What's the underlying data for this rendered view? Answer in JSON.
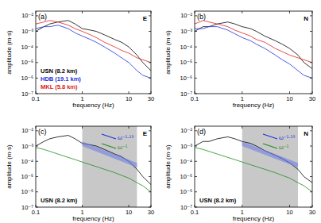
{
  "chart_data": [
    {
      "type": "line",
      "title": "(a)",
      "annotations": [
        {
          "text": "E"
        }
      ],
      "xlabel": "frequency (Hz)",
      "ylabel": "amplitude (m·s)",
      "log": true,
      "legend": "lower left",
      "xlim": [
        0.1,
        30
      ],
      "ylim": [
        1e-07,
        0.02
      ],
      "xticks": [
        0.1,
        1,
        10,
        30
      ],
      "yticks": [
        {
          "value": 1e-07,
          "label": "10⁻⁷"
        },
        {
          "value": 1e-06,
          "label": "10⁻⁶"
        },
        {
          "value": 1e-05,
          "label": "10⁻⁵"
        },
        {
          "value": 0.0001,
          "label": "10⁻⁴"
        },
        {
          "value": 0.001,
          "label": "10⁻³"
        },
        {
          "value": 0.01,
          "label": "10⁻²"
        }
      ],
      "x": [
        0.1,
        0.15,
        0.2,
        0.3,
        0.5,
        0.7,
        1,
        1.5,
        2,
        3,
        5,
        7,
        10,
        15,
        20,
        30
      ],
      "series": [
        {
          "name": "USN (8.2 km)",
          "color": "#000000",
          "values": [
            0.001,
            0.002,
            0.003,
            0.004,
            0.005,
            0.003,
            0.0015,
            0.0012,
            0.001,
            0.0006,
            0.0003,
            0.0002,
            0.0001,
            3e-05,
            1e-05,
            3e-06
          ]
        },
        {
          "name": "HDB (19.1 km)",
          "color": "#1f2fe0",
          "values": [
            0.0015,
            0.002,
            0.002,
            0.0025,
            0.0015,
            0.0008,
            0.0005,
            0.0003,
            0.0002,
            0.0001,
            4e-05,
            2e-05,
            1e-05,
            3e-06,
            1.5e-06,
            1e-06
          ]
        },
        {
          "name": "MKL (5.8 km)",
          "color": "#e0201b",
          "values": [
            0.003,
            0.004,
            0.005,
            0.004,
            0.0025,
            0.0015,
            0.001,
            0.0006,
            0.0004,
            0.0002,
            0.0001,
            6e-05,
            4e-05,
            2e-05,
            1.5e-05,
            1e-05
          ]
        }
      ]
    },
    {
      "type": "line",
      "title": "(b)",
      "annotations": [
        {
          "text": "N"
        }
      ],
      "xlabel": "frequency (Hz)",
      "ylabel": "amplitude (m·s)",
      "log": true,
      "xlim": [
        0.1,
        30
      ],
      "ylim": [
        1e-07,
        0.02
      ],
      "xticks": [
        0.1,
        1,
        10,
        30
      ],
      "yticks": [
        {
          "value": 1e-07,
          "label": "10⁻⁷"
        },
        {
          "value": 1e-06,
          "label": "10⁻⁶"
        },
        {
          "value": 1e-05,
          "label": "10⁻⁵"
        },
        {
          "value": 0.0001,
          "label": "10⁻⁴"
        },
        {
          "value": 0.001,
          "label": "10⁻³"
        },
        {
          "value": 0.01,
          "label": "10⁻²"
        }
      ],
      "x": [
        0.1,
        0.15,
        0.2,
        0.3,
        0.5,
        0.7,
        1,
        1.5,
        2,
        3,
        5,
        7,
        10,
        15,
        20,
        30
      ],
      "series": [
        {
          "color": "#000000",
          "values": [
            0.001,
            0.002,
            0.002,
            0.003,
            0.004,
            0.003,
            0.002,
            0.0015,
            0.001,
            0.0005,
            0.00025,
            0.00015,
            8e-05,
            3e-05,
            1e-05,
            4e-06
          ]
        },
        {
          "color": "#1f2fe0",
          "values": [
            0.0015,
            0.0015,
            0.002,
            0.002,
            0.0012,
            0.0007,
            0.0004,
            0.00025,
            0.00015,
            8e-05,
            3e-05,
            1.5e-05,
            8e-06,
            3e-06,
            1.5e-06,
            1e-06
          ]
        },
        {
          "color": "#e0201b",
          "values": [
            0.003,
            0.005,
            0.004,
            0.003,
            0.002,
            0.0012,
            0.0008,
            0.0005,
            0.0003,
            0.0002,
            8e-05,
            5e-05,
            3e-05,
            2e-05,
            1.5e-05,
            1e-05
          ]
        }
      ]
    },
    {
      "type": "line",
      "title": "(c)",
      "annotations": [
        {
          "text": "E"
        }
      ],
      "slope_labels": [
        {
          "text": "ω⁻¹·¹⁹",
          "color": "#1f2fe0"
        },
        {
          "text": "ω⁻¹",
          "color": "#1e8c1e"
        }
      ],
      "xlabel": "frequency (Hz)",
      "ylabel": "amplitude (m·s)",
      "log": true,
      "legend": "lower left",
      "highlight_x": [
        1,
        15
      ],
      "xlim": [
        0.1,
        30
      ],
      "ylim": [
        1e-07,
        0.02
      ],
      "xticks": [
        0.1,
        1,
        10,
        30
      ],
      "yticks": [
        {
          "value": 1e-07,
          "label": "10⁻⁷"
        },
        {
          "value": 1e-06,
          "label": "10⁻⁶"
        },
        {
          "value": 1e-05,
          "label": "10⁻⁵"
        },
        {
          "value": 0.0001,
          "label": "10⁻⁴"
        },
        {
          "value": 0.001,
          "label": "10⁻³"
        },
        {
          "value": 0.01,
          "label": "10⁻²"
        }
      ],
      "x": [
        0.1,
        0.15,
        0.2,
        0.3,
        0.5,
        0.7,
        1,
        1.5,
        2,
        3,
        5,
        7,
        10,
        15,
        20,
        30
      ],
      "series": [
        {
          "name": "USN (8.2 km)",
          "color": "#000000",
          "values": [
            0.001,
            0.002,
            0.003,
            0.004,
            0.005,
            0.003,
            0.0015,
            0.0012,
            0.001,
            0.0006,
            0.0003,
            0.0002,
            0.0001,
            3e-05,
            1e-05,
            3e-06
          ]
        },
        {
          "color": "#1e8c1e",
          "values": [
            0.0008,
            0.0006,
            0.00045,
            0.0003,
            0.00018,
            0.00013,
            9e-05,
            6e-05,
            4.5e-05,
            3e-05,
            1.8e-05,
            1.2e-05,
            8e-06,
            4e-06,
            2.5e-06,
            1e-06
          ]
        },
        {
          "type": "band",
          "color": "#6f7fe8",
          "x": [
            1,
            15
          ],
          "lower": [
            0.001,
            4e-05
          ],
          "upper": [
            0.002,
            8e-05
          ]
        }
      ]
    },
    {
      "type": "line",
      "title": "(d)",
      "annotations": [
        {
          "text": "N"
        }
      ],
      "slope_labels": [
        {
          "text": "ω⁻¹·¹⁹",
          "color": "#1f2fe0"
        },
        {
          "text": "ω⁻¹",
          "color": "#1e8c1e"
        }
      ],
      "xlabel": "frequency (Hz)",
      "ylabel": "amplitude (m·s)",
      "log": true,
      "legend": "lower left",
      "highlight_x": [
        1,
        15
      ],
      "xlim": [
        0.1,
        30
      ],
      "ylim": [
        1e-07,
        0.02
      ],
      "xticks": [
        0.1,
        1,
        10,
        30
      ],
      "yticks": [
        {
          "value": 1e-07,
          "label": "10⁻⁷"
        },
        {
          "value": 1e-06,
          "label": "10⁻⁶"
        },
        {
          "value": 1e-05,
          "label": "10⁻⁵"
        },
        {
          "value": 0.0001,
          "label": "10⁻⁴"
        },
        {
          "value": 0.001,
          "label": "10⁻³"
        },
        {
          "value": 0.01,
          "label": "10⁻²"
        }
      ],
      "x": [
        0.1,
        0.15,
        0.2,
        0.3,
        0.5,
        0.7,
        1,
        1.5,
        2,
        3,
        5,
        7,
        10,
        15,
        20,
        30
      ],
      "series": [
        {
          "name": "USN (8.2 km)",
          "color": "#000000",
          "values": [
            0.001,
            0.002,
            0.002,
            0.003,
            0.004,
            0.003,
            0.002,
            0.0015,
            0.001,
            0.0005,
            0.00025,
            0.00015,
            8e-05,
            3e-05,
            1e-05,
            4e-06
          ]
        },
        {
          "color": "#1e8c1e",
          "values": [
            0.0008,
            0.0006,
            0.00045,
            0.0003,
            0.00018,
            0.00013,
            9e-05,
            6e-05,
            4.5e-05,
            3e-05,
            1.8e-05,
            1.2e-05,
            8e-06,
            4e-06,
            2.5e-06,
            1e-06
          ]
        },
        {
          "type": "band",
          "color": "#6f7fe8",
          "x": [
            1,
            15
          ],
          "lower": [
            0.001,
            4e-05
          ],
          "upper": [
            0.002,
            8e-05
          ]
        }
      ]
    }
  ]
}
